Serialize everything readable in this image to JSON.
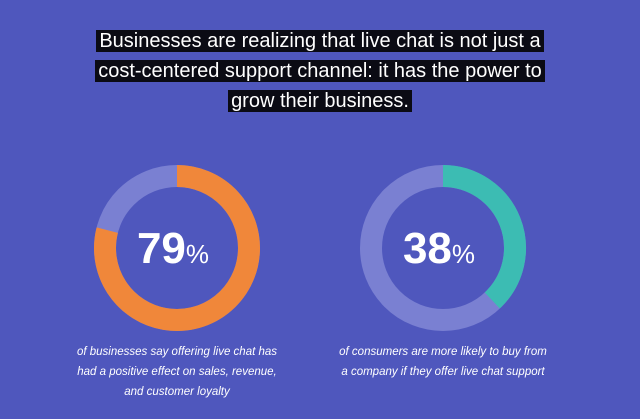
{
  "headline_lines": [
    "Businesses are realizing that live chat is not just a",
    "cost-centered support channel: it has the power to",
    "grow their business."
  ],
  "chart_data": [
    {
      "type": "donut",
      "values": [
        79
      ],
      "unit": "%",
      "color": "#f0873a",
      "track_color": "#7a80d2",
      "total": 100,
      "caption_lines": [
        "of businesses say offering live chat has",
        "had a positive effect on sales, revenue,",
        "and customer loyalty"
      ]
    },
    {
      "type": "donut",
      "values": [
        38
      ],
      "unit": "%",
      "color": "#3cbcb3",
      "track_color": "#7a80d2",
      "total": 100,
      "caption_lines": [
        "of consumers are more likely to buy from",
        "a company if they offer live chat support"
      ]
    }
  ]
}
